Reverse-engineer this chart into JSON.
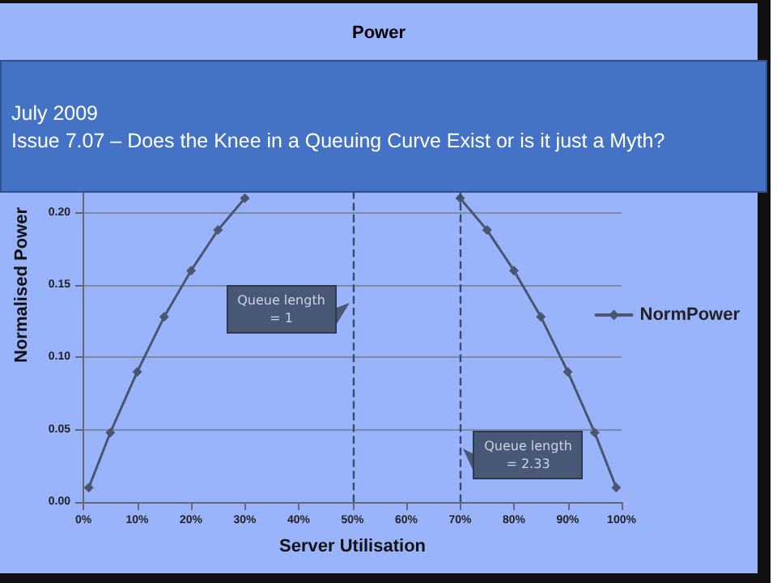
{
  "chart_data": {
    "type": "line",
    "title": "Power",
    "xlabel": "Server Utilisation",
    "ylabel": "Normalised Power",
    "x": [
      1,
      5,
      10,
      15,
      20,
      25,
      30,
      35,
      40,
      45,
      50,
      55,
      60,
      65,
      70,
      75,
      80,
      85,
      90,
      95,
      99
    ],
    "series": [
      {
        "name": "NormPower",
        "color": "#4a5570",
        "values": [
          0.01,
          0.048,
          0.09,
          0.128,
          0.16,
          0.188,
          0.21,
          null,
          null,
          null,
          null,
          null,
          null,
          null,
          0.21,
          0.188,
          0.16,
          0.128,
          0.09,
          0.048,
          0.01
        ]
      }
    ],
    "xlim": [
      0,
      100
    ],
    "xticks": [
      {
        "value": 0,
        "label": "0%"
      },
      {
        "value": 10,
        "label": "10%"
      },
      {
        "value": 20,
        "label": "20%"
      },
      {
        "value": 30,
        "label": "30%"
      },
      {
        "value": 40,
        "label": "40%"
      },
      {
        "value": 50,
        "label": "50%"
      },
      {
        "value": 60,
        "label": "60%"
      },
      {
        "value": 70,
        "label": "70%"
      },
      {
        "value": 80,
        "label": "80%"
      },
      {
        "value": 90,
        "label": "90%"
      },
      {
        "value": 100,
        "label": "100%"
      }
    ],
    "ylim": [
      0,
      0.3
    ],
    "yticks": [
      {
        "value": 0,
        "label": "0.00"
      },
      {
        "value": 0.05,
        "label": "0.05"
      },
      {
        "value": 0.1,
        "label": "0.10"
      },
      {
        "value": 0.15,
        "label": "0.15"
      },
      {
        "value": 0.2,
        "label": "0.20"
      }
    ],
    "ref_lines": [
      {
        "axis": "x",
        "value": 50,
        "color": "#3a4a6a",
        "line_style": "dashed"
      },
      {
        "axis": "x",
        "value": 70,
        "color": "#3a4a6a",
        "line_style": "dashed"
      }
    ],
    "annotations": [
      {
        "text": "Queue length = 1",
        "x": 50,
        "y": 0.135
      },
      {
        "text": "Queue length = 2.33",
        "x": 70,
        "y": 0.035
      },
      "July 2009",
      "Issue 7.07 – Does the Knee in a Queuing Curve Exist or is it just a Myth?"
    ],
    "grid": "y",
    "legend": "right",
    "marker": "diamond",
    "line_style": "solid"
  }
}
